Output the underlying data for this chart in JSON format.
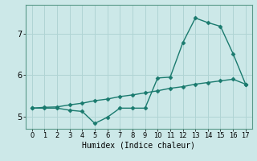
{
  "xlabel": "Humidex (Indice chaleur)",
  "background_color": "#cce8e8",
  "grid_color": "#b0d4d4",
  "line_color": "#1a7a6e",
  "x_ticks": [
    0,
    1,
    2,
    3,
    4,
    5,
    6,
    7,
    8,
    9,
    10,
    11,
    12,
    13,
    14,
    15,
    16,
    17
  ],
  "y_ticks": [
    5,
    6,
    7
  ],
  "ylim": [
    4.7,
    7.7
  ],
  "xlim": [
    -0.5,
    17.5
  ],
  "line1_x": [
    0,
    1,
    2,
    3,
    4,
    5,
    6,
    7,
    8,
    9,
    10,
    11,
    12,
    13,
    14,
    15,
    16,
    17
  ],
  "line1_y": [
    5.2,
    5.2,
    5.2,
    5.15,
    5.12,
    4.83,
    4.98,
    5.2,
    5.2,
    5.2,
    5.93,
    5.95,
    6.78,
    7.38,
    7.27,
    7.18,
    6.52,
    5.78
  ],
  "line2_x": [
    0,
    1,
    2,
    3,
    4,
    5,
    6,
    7,
    8,
    9,
    10,
    11,
    12,
    13,
    14,
    15,
    16,
    17
  ],
  "line2_y": [
    5.2,
    5.22,
    5.23,
    5.28,
    5.32,
    5.38,
    5.42,
    5.48,
    5.52,
    5.57,
    5.62,
    5.68,
    5.72,
    5.78,
    5.82,
    5.86,
    5.9,
    5.78
  ],
  "marker": "D",
  "markersize": 2.5,
  "linewidth": 1.0
}
